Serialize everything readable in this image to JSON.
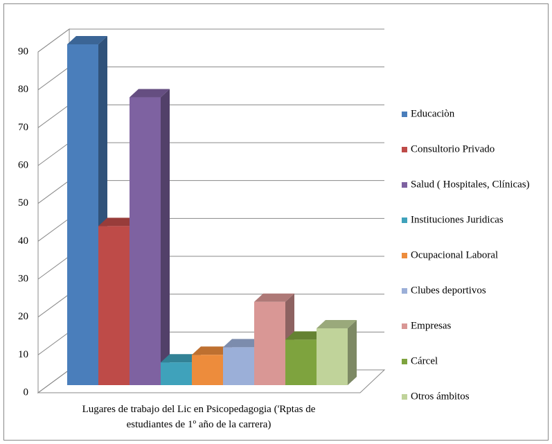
{
  "chart_data": {
    "type": "bar3d",
    "categories": [
      "Lugares de trabajo del Lic  en Psicopedagogia ('Rptas de estudiantes de 1º año de la carrera)"
    ],
    "series": [
      {
        "name": "Educaciòn",
        "color": "#4a7ebb",
        "values": [
          90
        ]
      },
      {
        "name": "Consultorio Privado",
        "color": "#be4b48",
        "values": [
          42
        ]
      },
      {
        "name": "Salud ( Hospitales, Clínicas)",
        "color": "#7e62a1",
        "values": [
          76
        ]
      },
      {
        "name": "Instituciones Juridicas",
        "color": "#3fa2bb",
        "values": [
          6
        ]
      },
      {
        "name": "Ocupacional Laboral",
        "color": "#ed8c3c",
        "values": [
          8
        ]
      },
      {
        "name": "Clubes deportivos",
        "color": "#9bafd8",
        "values": [
          10
        ]
      },
      {
        "name": "Empresas",
        "color": "#d99795",
        "values": [
          22
        ]
      },
      {
        "name": "Cárcel",
        "color": "#7ea33e",
        "values": [
          12
        ]
      },
      {
        "name": "Otros ámbitos",
        "color": "#c0d39a",
        "values": [
          15
        ]
      }
    ],
    "ylim": [
      0,
      90
    ],
    "yticks": [
      0,
      10,
      20,
      30,
      40,
      50,
      60,
      70,
      80,
      90
    ],
    "grid": true,
    "legend": "right"
  }
}
